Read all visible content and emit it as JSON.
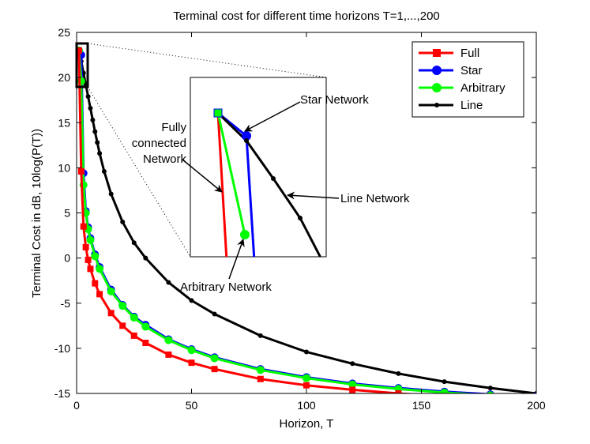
{
  "chart_data": {
    "type": "line",
    "title": "Terminal cost for different time horizons T=1,...,200",
    "xlabel": "Horizon, T",
    "ylabel": "Terminal Cost in dB, 10log(P(T))",
    "xlim": [
      0,
      200
    ],
    "ylim": [
      -15,
      25
    ],
    "xticks": [
      0,
      50,
      100,
      150,
      200
    ],
    "yticks": [
      -15,
      -10,
      -5,
      0,
      5,
      10,
      15,
      20,
      25
    ],
    "grid": false,
    "legend_position": "top-right",
    "series": [
      {
        "name": "Full",
        "color": "#ff0000",
        "marker": "square"
      },
      {
        "name": "Star",
        "color": "#0000ff",
        "marker": "circle"
      },
      {
        "name": "Arbitrary",
        "color": "#00ff00",
        "marker": "circle"
      },
      {
        "name": "Line",
        "color": "#000000",
        "marker": "dot"
      }
    ],
    "curves": {
      "Line": {
        "x": [
          1,
          2,
          3,
          4,
          5,
          6,
          7,
          8,
          9,
          10,
          12,
          15,
          20,
          25,
          30,
          40,
          50,
          60,
          80,
          100,
          120,
          140,
          160,
          180,
          200
        ],
        "y": [
          23.0,
          21.8,
          20.5,
          19.2,
          17.9,
          16.6,
          15.3,
          14.0,
          12.8,
          11.6,
          9.6,
          7.1,
          4.0,
          1.7,
          0.0,
          -2.7,
          -4.7,
          -6.2,
          -8.6,
          -10.4,
          -11.7,
          -12.8,
          -13.7,
          -14.4,
          -15.0
        ]
      },
      "Star": {
        "x": [
          1,
          2,
          3,
          4,
          5,
          6,
          8,
          10,
          15,
          20,
          25,
          30,
          40,
          50,
          60,
          80,
          100,
          120,
          140,
          160,
          180,
          200
        ],
        "y": [
          23.0,
          22.5,
          9.4,
          5.2,
          3.4,
          2.2,
          0.4,
          -1.0,
          -3.5,
          -5.2,
          -6.5,
          -7.4,
          -9.0,
          -10.1,
          -11.0,
          -12.3,
          -13.2,
          -13.9,
          -14.4,
          -14.8,
          -15.1,
          -15.3
        ]
      },
      "Arbitrary": {
        "x": [
          1,
          2,
          3,
          4,
          5,
          6,
          8,
          10,
          15,
          20,
          25,
          30,
          40,
          50,
          60,
          80,
          100,
          120,
          140,
          160,
          180,
          200
        ],
        "y": [
          23.0,
          19.6,
          8.1,
          5.0,
          3.2,
          2.0,
          0.2,
          -1.2,
          -3.7,
          -5.3,
          -6.6,
          -7.6,
          -9.1,
          -10.2,
          -11.1,
          -12.4,
          -13.3,
          -14.0,
          -14.5,
          -14.9,
          -15.2,
          -15.4
        ]
      },
      "Full": {
        "x": [
          1,
          2,
          3,
          4,
          5,
          6,
          8,
          10,
          15,
          20,
          25,
          30,
          40,
          50,
          60,
          80,
          100,
          120,
          140,
          160,
          180,
          200
        ],
        "y": [
          23.0,
          9.6,
          3.5,
          1.2,
          -0.2,
          -1.2,
          -2.8,
          -4.0,
          -6.1,
          -7.5,
          -8.6,
          -9.4,
          -10.7,
          -11.6,
          -12.3,
          -13.4,
          -14.1,
          -14.6,
          -15.0,
          -15.3,
          -15.5,
          -15.7
        ]
      }
    },
    "inset": {
      "zoom_region": {
        "x": [
          0.5,
          5
        ],
        "y": [
          19,
          24
        ]
      },
      "annotations": [
        "Star Network",
        "Fully connected Network",
        "Line Network",
        "Arbitrary Network"
      ]
    }
  },
  "labels": {
    "annot_star": "Star Network",
    "annot_full_line1": "Fully",
    "annot_full_line2": "connected",
    "annot_full_line3": "Network",
    "annot_line": "Line Network",
    "annot_arbitrary": "Arbitrary Network"
  }
}
